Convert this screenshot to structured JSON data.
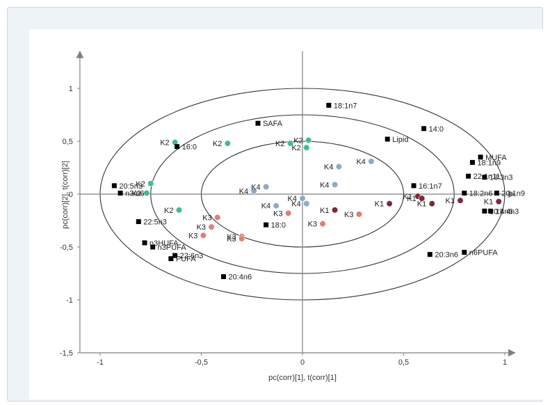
{
  "chart_data": {
    "type": "scatter",
    "xlabel": "pc(corr)[1], t(corr)[1]",
    "ylabel": "pc(corr)[2], t(corr)[2]",
    "xlim": [
      -1.1,
      1.05
    ],
    "ylim": [
      -1.5,
      1.35
    ],
    "xticks": [
      "-1",
      "-0,5",
      "0",
      "0,5",
      "1"
    ],
    "xtick_values": [
      -1,
      -0.5,
      0,
      0.5,
      1
    ],
    "yticks": [
      "1",
      "0,5",
      "0",
      "-0,5",
      "-1",
      "-1,5"
    ],
    "ytick_values": [
      1,
      0.5,
      0,
      -0.5,
      -1,
      -1.5
    ],
    "grid": false,
    "circles_r": [
      1.0,
      0.75,
      0.5
    ],
    "colors": {
      "axis": "#7f7f7f",
      "circle": "#333333",
      "variable": "#000000",
      "K1": "#7a2a38",
      "K2": "#3fbf8f",
      "K3": "#e07f72",
      "K4": "#8daac8"
    },
    "variables": [
      {
        "label": "18:1n7",
        "x": 0.13,
        "y": 0.84
      },
      {
        "label": "SAFA",
        "x": -0.22,
        "y": 0.67
      },
      {
        "label": "14:0",
        "x": 0.6,
        "y": 0.62
      },
      {
        "label": "Lipid",
        "x": 0.42,
        "y": 0.52
      },
      {
        "label": "16:0",
        "x": -0.62,
        "y": 0.45
      },
      {
        "label": "MUFA",
        "x": 0.88,
        "y": 0.35
      },
      {
        "label": "18:1n9",
        "x": 0.84,
        "y": 0.3
      },
      {
        "label": "22:1n11",
        "x": 0.82,
        "y": 0.17
      },
      {
        "label": "18:3n3",
        "x": 0.9,
        "y": 0.16
      },
      {
        "label": "20:5n3",
        "x": -0.93,
        "y": 0.08
      },
      {
        "label": "16:1n7",
        "x": 0.55,
        "y": 0.08
      },
      {
        "label": "n3/n6",
        "x": -0.9,
        "y": 0.01
      },
      {
        "label": "18:2n6",
        "x": 0.8,
        "y": 0.01
      },
      {
        "label": "20:1n9",
        "x": 0.96,
        "y": 0.01
      },
      {
        "label": "22:5n3",
        "x": -0.81,
        "y": -0.26
      },
      {
        "label": "18:0",
        "x": -0.18,
        "y": -0.29
      },
      {
        "label": "18:4n3",
        "x": 0.93,
        "y": -0.16
      },
      {
        "label": "20:4n6",
        "x": 0.9,
        "y": -0.16
      },
      {
        "label": "n3HUFA",
        "x": -0.78,
        "y": -0.46
      },
      {
        "label": "n3PUFA",
        "x": -0.74,
        "y": -0.5
      },
      {
        "label": "22:6n3",
        "x": -0.63,
        "y": -0.58
      },
      {
        "label": "PUFA",
        "x": -0.65,
        "y": -0.61
      },
      {
        "label": "20:3n6",
        "x": 0.63,
        "y": -0.57
      },
      {
        "label": "n6PUFA",
        "x": 0.8,
        "y": -0.55
      },
      {
        "label": "20:4n6",
        "x": -0.39,
        "y": -0.78
      }
    ],
    "observations": [
      {
        "label": "K2",
        "group": "K2",
        "x": -0.63,
        "y": 0.49
      },
      {
        "label": "K2",
        "group": "K2",
        "x": -0.37,
        "y": 0.48
      },
      {
        "label": "K2",
        "group": "K2",
        "x": -0.06,
        "y": 0.48
      },
      {
        "label": "K2",
        "group": "K2",
        "x": 0.03,
        "y": 0.51
      },
      {
        "label": "K2",
        "group": "K2",
        "x": 0.02,
        "y": 0.44
      },
      {
        "label": "K2",
        "group": "K2",
        "x": -0.75,
        "y": 0.1
      },
      {
        "label": "K2",
        "group": "K2",
        "x": -0.77,
        "y": 0.01
      },
      {
        "label": "K2",
        "group": "K2",
        "x": -0.61,
        "y": -0.15
      },
      {
        "label": "K4",
        "group": "K4",
        "x": 0.18,
        "y": 0.26
      },
      {
        "label": "K4",
        "group": "K4",
        "x": 0.34,
        "y": 0.31
      },
      {
        "label": "K4",
        "group": "K4",
        "x": -0.24,
        "y": 0.03
      },
      {
        "label": "K4",
        "group": "K4",
        "x": -0.18,
        "y": 0.07
      },
      {
        "label": "K4",
        "group": "K4",
        "x": 0.16,
        "y": 0.09
      },
      {
        "label": "K4",
        "group": "K4",
        "x": -0.13,
        "y": -0.11
      },
      {
        "label": "K4",
        "group": "K4",
        "x": 0.0,
        "y": -0.04
      },
      {
        "label": "K4",
        "group": "K4",
        "x": 0.02,
        "y": -0.09
      },
      {
        "label": "K3",
        "group": "K3",
        "x": -0.42,
        "y": -0.22
      },
      {
        "label": "K3",
        "group": "K3",
        "x": -0.07,
        "y": -0.18
      },
      {
        "label": "K3",
        "group": "K3",
        "x": -0.45,
        "y": -0.31
      },
      {
        "label": "K3",
        "group": "K3",
        "x": -0.49,
        "y": -0.39
      },
      {
        "label": "K3",
        "group": "K3",
        "x": -0.3,
        "y": -0.4
      },
      {
        "label": "K3",
        "group": "K3",
        "x": -0.3,
        "y": -0.42
      },
      {
        "label": "K3",
        "group": "K3",
        "x": 0.1,
        "y": -0.28
      },
      {
        "label": "K3",
        "group": "K3",
        "x": 0.28,
        "y": -0.19
      },
      {
        "label": "K1",
        "group": "K1",
        "x": 0.16,
        "y": -0.15
      },
      {
        "label": "K1",
        "group": "K1",
        "x": 0.43,
        "y": -0.09
      },
      {
        "label": "K1",
        "group": "K1",
        "x": 0.57,
        "y": -0.02
      },
      {
        "label": "K1",
        "group": "K1",
        "x": 0.59,
        "y": -0.04
      },
      {
        "label": "K1",
        "group": "K1",
        "x": 0.64,
        "y": -0.09
      },
      {
        "label": "K1",
        "group": "K1",
        "x": 0.78,
        "y": -0.06
      },
      {
        "label": "K1",
        "group": "K1",
        "x": 0.97,
        "y": -0.07
      }
    ]
  }
}
